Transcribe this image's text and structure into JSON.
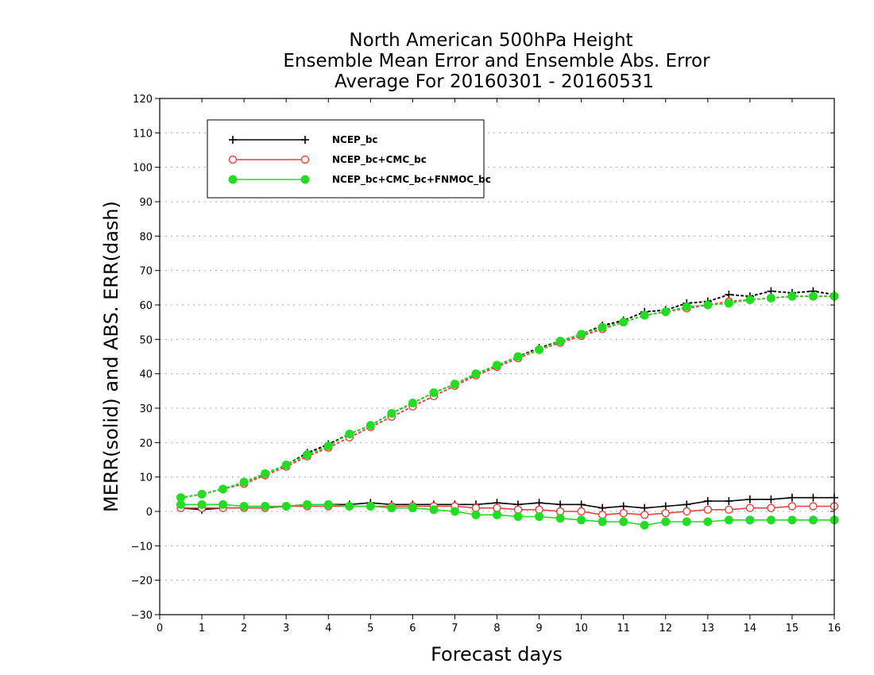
{
  "chart_data": {
    "type": "line",
    "title_lines": [
      "North American 500hPa Height",
      "Ensemble Mean Error and Ensemble Abs. Error",
      "Average For 20160301 - 20160531"
    ],
    "xlabel": "Forecast days",
    "ylabel": "MERR(solid) and ABS. ERR(dash)",
    "xlim": [
      0,
      16
    ],
    "ylim": [
      -30,
      120
    ],
    "xticks": [
      0,
      1,
      2,
      3,
      4,
      5,
      6,
      7,
      8,
      9,
      10,
      11,
      12,
      13,
      14,
      15,
      16
    ],
    "yticks": [
      -30,
      -20,
      -10,
      0,
      10,
      20,
      30,
      40,
      50,
      60,
      70,
      80,
      90,
      100,
      110,
      120
    ],
    "grid": true,
    "legend_position": "top-left",
    "x": [
      0.5,
      1,
      1.5,
      2,
      2.5,
      3,
      3.5,
      4,
      4.5,
      5,
      5.5,
      6,
      6.5,
      7,
      7.5,
      8,
      8.5,
      9,
      9.5,
      10,
      10.5,
      11,
      11.5,
      12,
      12.5,
      13,
      13.5,
      14,
      14.5,
      15,
      15.5,
      16
    ],
    "series": [
      {
        "name": "NCEP_bc",
        "color": "#000000",
        "marker": "plus",
        "merr": [
          1,
          0.5,
          1,
          1,
          1,
          1.5,
          2,
          2,
          2,
          2.5,
          2,
          2,
          2,
          2,
          2,
          2.5,
          2,
          2.5,
          2,
          2,
          1,
          1.5,
          1,
          1.5,
          2,
          3,
          3,
          3.5,
          3.5,
          4,
          4,
          4
        ],
        "abs_err": [
          4,
          5,
          6.5,
          8.5,
          11,
          13.5,
          17,
          19.5,
          22.5,
          25,
          28.5,
          31.5,
          34.5,
          37,
          40,
          42.5,
          45,
          47.5,
          49.5,
          51.5,
          54,
          55.5,
          58,
          58.5,
          60.5,
          61,
          63,
          62.5,
          64,
          63.5,
          64,
          63
        ]
      },
      {
        "name": "NCEP_bc+CMC_bc",
        "color": "#e8413a",
        "marker": "open-circle",
        "merr": [
          1,
          1,
          1,
          1,
          1,
          1.5,
          1.5,
          1.5,
          1.5,
          1.5,
          1.5,
          1.5,
          1.5,
          1.5,
          1,
          1,
          0.5,
          0.5,
          0,
          0,
          -1,
          -0.5,
          -1,
          -0.5,
          0,
          0.5,
          0.5,
          1,
          1,
          1.5,
          1.5,
          1.5
        ],
        "abs_err": [
          4,
          5,
          6.5,
          8,
          10.5,
          13,
          16,
          18.5,
          21.5,
          24.5,
          27.5,
          30.5,
          33.5,
          36.5,
          39.5,
          42,
          44.5,
          47,
          49,
          51,
          53,
          55,
          57,
          58,
          59,
          60,
          61,
          61.5,
          62,
          62.5,
          62.5,
          62.5
        ]
      },
      {
        "name": "NCEP_bc+CMC_bc+FNMOC_bc",
        "color": "#22dd22",
        "marker": "filled-circle",
        "merr": [
          2,
          2,
          2,
          1.5,
          1.5,
          1.5,
          2,
          2,
          1.5,
          1.5,
          1,
          1,
          0.5,
          0,
          -1,
          -1,
          -1.5,
          -1.5,
          -2,
          -2.5,
          -3,
          -3,
          -4,
          -3,
          -3,
          -3,
          -2.5,
          -2.5,
          -2.5,
          -2.5,
          -2.5,
          -2.5
        ],
        "abs_err": [
          4,
          5,
          6.5,
          8.5,
          11,
          13.5,
          16.5,
          19,
          22.5,
          25,
          28.5,
          31.5,
          34.5,
          37,
          40,
          42.5,
          45,
          47,
          49.5,
          51.5,
          53.5,
          55,
          57,
          58,
          59.5,
          60,
          60.5,
          61.5,
          62,
          62.5,
          62.5,
          62.5
        ]
      }
    ]
  }
}
